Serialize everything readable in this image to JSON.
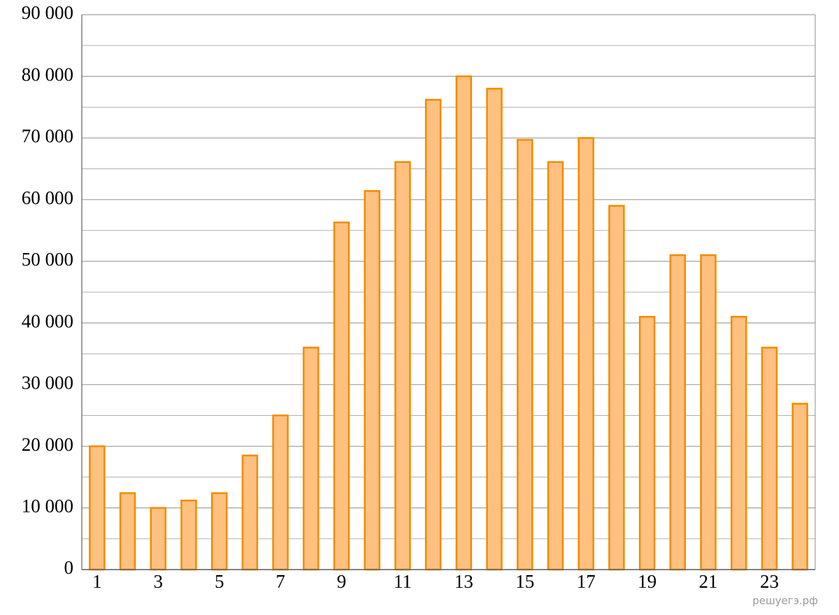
{
  "chart_data": {
    "type": "bar",
    "categories": [
      "1",
      null,
      "3",
      null,
      "5",
      null,
      "7",
      null,
      "9",
      null,
      "11",
      null,
      "13",
      null,
      "15",
      null,
      "17",
      null,
      "19",
      null,
      "21",
      null,
      "23",
      null
    ],
    "values": [
      20000,
      12400,
      10000,
      11200,
      12400,
      18500,
      25000,
      36000,
      56300,
      61400,
      66100,
      76200,
      80000,
      78000,
      69700,
      66100,
      70000,
      59000,
      41000,
      51000,
      51000,
      41000,
      36000,
      26900
    ],
    "color": "#ffc080",
    "edge_color": "#f08c00",
    "ylim": [
      0,
      90000
    ],
    "yticks": [
      0,
      {
        "value": 10000,
        "label": "10 000"
      },
      {
        "value": 20000,
        "label": "20 000"
      },
      {
        "value": 30000,
        "label": "30 000"
      },
      {
        "value": 40000,
        "label": "40 000"
      },
      {
        "value": 50000,
        "label": "50 000"
      },
      {
        "value": 60000,
        "label": "60 000"
      },
      {
        "value": 70000,
        "label": "70 000"
      },
      {
        "value": 80000,
        "label": "80 000"
      },
      {
        "value": 90000,
        "label": "90 000"
      }
    ],
    "minor_yticks": [
      5000,
      15000,
      25000,
      35000,
      45000,
      55000,
      65000,
      75000,
      85000
    ],
    "grid": true,
    "watermark": "решуегэ.рф"
  }
}
